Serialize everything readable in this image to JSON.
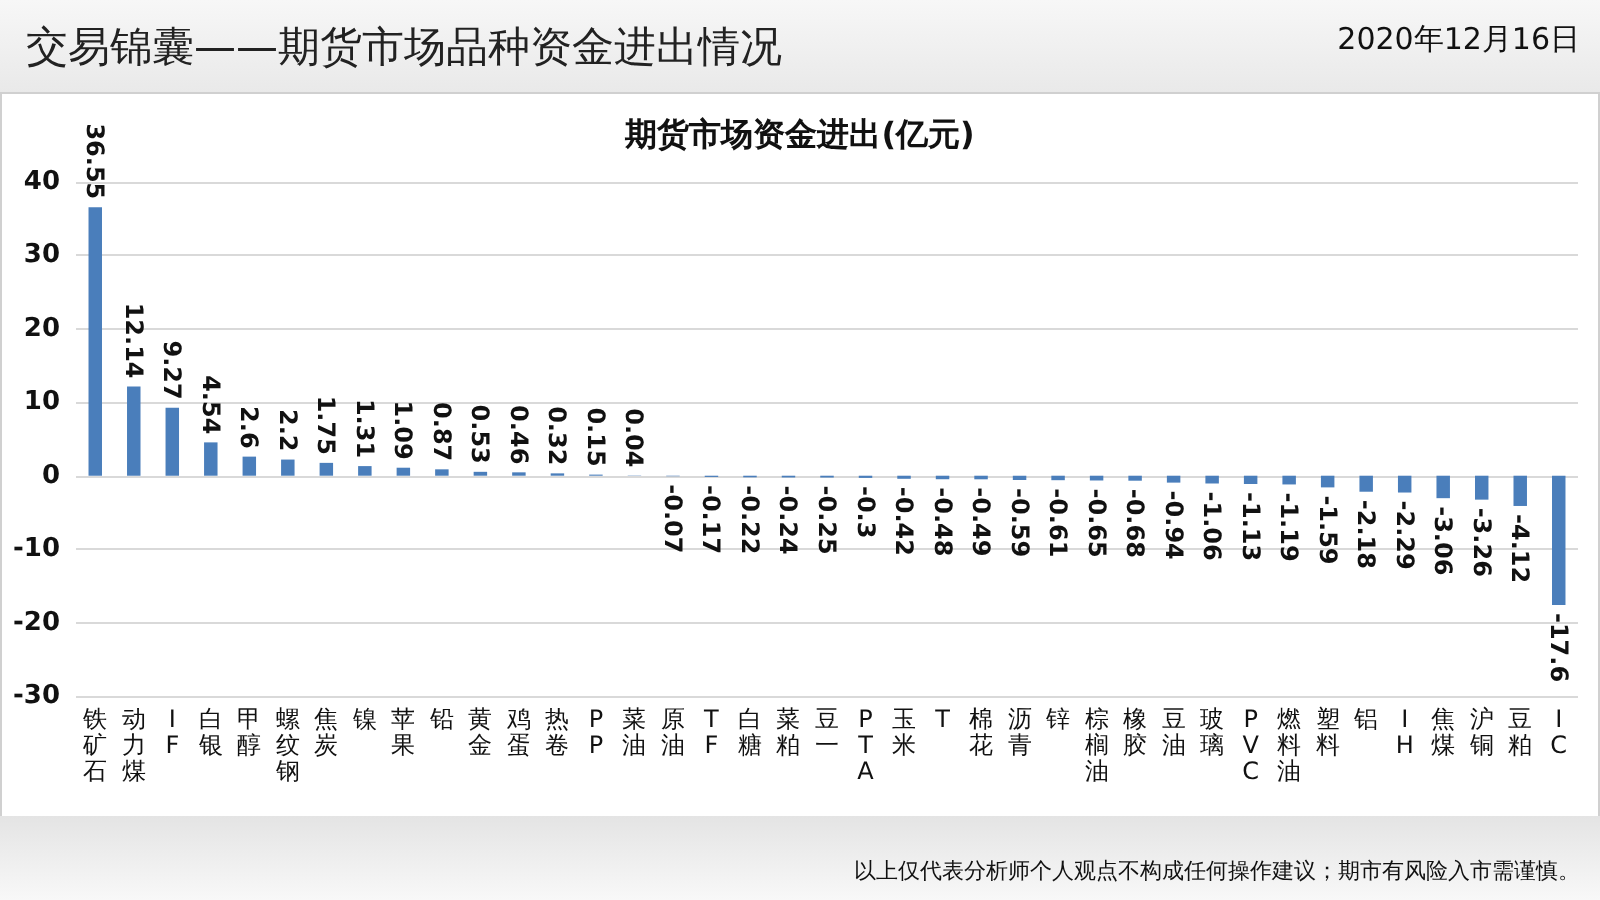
{
  "chart_data": {
    "type": "bar",
    "title": "交易锦囊——期货市场品种资金进出情况",
    "subtitle": "期货市场资金进出(亿元)",
    "annotations": [
      "2020年12月16日",
      "以上仅代表分析师个人观点不构成任何操作建议；期市有风险入市需谨慎。"
    ],
    "categories": [
      "铁矿石",
      "动力煤",
      "IF",
      "白银",
      "甲醇",
      "螺纹钢",
      "焦炭",
      "镍",
      "苹果",
      "铅",
      "黄金",
      "鸡蛋",
      "热卷",
      "PP",
      "菜油",
      "原油",
      "TF",
      "白糖",
      "菜粕",
      "豆一",
      "PTA",
      "玉米",
      "T",
      "棉花",
      "沥青",
      "锌",
      "棕榈油",
      "橡胶",
      "豆油",
      "玻璃",
      "PVC",
      "燃料油",
      "塑料",
      "铝",
      "IH",
      "焦煤",
      "沪铜",
      "豆粕",
      "IC"
    ],
    "values": [
      36.55,
      12.14,
      9.27,
      4.54,
      2.6,
      2.2,
      1.75,
      1.31,
      1.09,
      0.87,
      0.53,
      0.46,
      0.32,
      0.15,
      0.04,
      -0.07,
      -0.17,
      -0.22,
      -0.24,
      -0.25,
      -0.3,
      -0.42,
      -0.48,
      -0.49,
      -0.59,
      -0.61,
      -0.65,
      -0.68,
      -0.94,
      -1.06,
      -1.13,
      -1.19,
      -1.59,
      -2.18,
      -2.29,
      -3.06,
      -3.26,
      -4.12,
      -17.6
    ],
    "color": "#4a7ebb",
    "ylim": [
      -30,
      40
    ],
    "yticks": [
      -30,
      -20,
      -10,
      0,
      10,
      20,
      30,
      40
    ],
    "grid": "y",
    "data_labels": true
  }
}
